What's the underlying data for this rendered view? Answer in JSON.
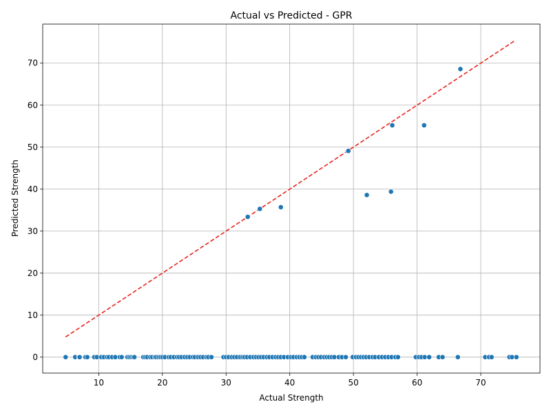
{
  "chart_data": {
    "type": "scatter",
    "title": "Actual vs Predicted - GPR",
    "xlabel": "Actual Strength",
    "ylabel": "Predicted Strength",
    "xlim": [
      1.2,
      79.3
    ],
    "ylim": [
      -3.8,
      79.3
    ],
    "xticks": [
      10,
      20,
      30,
      40,
      50,
      60,
      70
    ],
    "yticks": [
      0,
      10,
      20,
      30,
      40,
      50,
      60,
      70
    ],
    "grid": true,
    "point_color": "#1f77b4",
    "reference_line": {
      "x": [
        4.8,
        75.5
      ],
      "y": [
        4.8,
        75.5
      ],
      "color": "#e8221c",
      "style": "dashed"
    },
    "points": [
      [
        33.4,
        33.4
      ],
      [
        35.3,
        35.3
      ],
      [
        38.6,
        35.7
      ],
      [
        49.2,
        49.1
      ],
      [
        52.1,
        38.6
      ],
      [
        55.9,
        39.4
      ],
      [
        56.1,
        55.2
      ],
      [
        61.1,
        55.2
      ],
      [
        66.8,
        68.6
      ],
      [
        4.8,
        0
      ],
      [
        6.3,
        0
      ],
      [
        6.9,
        0
      ],
      [
        7.0,
        0
      ],
      [
        7.9,
        0
      ],
      [
        8.2,
        0
      ],
      [
        9.3,
        0
      ],
      [
        9.7,
        0
      ],
      [
        10.4,
        0
      ],
      [
        10.8,
        0
      ],
      [
        11.3,
        0
      ],
      [
        11.6,
        0
      ],
      [
        12.1,
        0
      ],
      [
        12.6,
        0
      ],
      [
        13.3,
        0
      ],
      [
        13.6,
        0
      ],
      [
        14.5,
        0
      ],
      [
        14.8,
        0
      ],
      [
        15.1,
        0
      ],
      [
        15.4,
        0
      ],
      [
        15.6,
        0
      ],
      [
        17.0,
        0
      ],
      [
        17.3,
        0
      ],
      [
        17.6,
        0
      ],
      [
        18.1,
        0
      ],
      [
        18.4,
        0
      ],
      [
        18.8,
        0
      ],
      [
        19.0,
        0
      ],
      [
        19.4,
        0
      ],
      [
        19.7,
        0
      ],
      [
        20.0,
        0
      ],
      [
        20.4,
        0
      ],
      [
        21.0,
        0
      ],
      [
        21.3,
        0
      ],
      [
        21.8,
        0
      ],
      [
        22.3,
        0
      ],
      [
        22.6,
        0
      ],
      [
        23.0,
        0
      ],
      [
        23.5,
        0
      ],
      [
        23.9,
        0
      ],
      [
        24.3,
        0
      ],
      [
        24.8,
        0
      ],
      [
        25.1,
        0
      ],
      [
        25.6,
        0
      ],
      [
        26.0,
        0
      ],
      [
        26.4,
        0
      ],
      [
        26.9,
        0
      ],
      [
        27.2,
        0
      ],
      [
        27.7,
        0
      ],
      [
        29.6,
        0
      ],
      [
        30.0,
        0
      ],
      [
        30.4,
        0
      ],
      [
        30.9,
        0
      ],
      [
        31.3,
        0
      ],
      [
        31.7,
        0
      ],
      [
        32.2,
        0
      ],
      [
        32.6,
        0
      ],
      [
        32.9,
        0
      ],
      [
        33.3,
        0
      ],
      [
        33.8,
        0
      ],
      [
        34.3,
        0
      ],
      [
        34.7,
        0
      ],
      [
        35.1,
        0
      ],
      [
        35.5,
        0
      ],
      [
        35.9,
        0
      ],
      [
        36.4,
        0
      ],
      [
        36.8,
        0
      ],
      [
        37.3,
        0
      ],
      [
        37.8,
        0
      ],
      [
        38.2,
        0
      ],
      [
        38.6,
        0
      ],
      [
        39.1,
        0
      ],
      [
        39.7,
        0
      ],
      [
        40.2,
        0
      ],
      [
        40.6,
        0
      ],
      [
        41.1,
        0
      ],
      [
        41.5,
        0
      ],
      [
        41.9,
        0
      ],
      [
        42.3,
        0
      ],
      [
        43.6,
        0
      ],
      [
        44.1,
        0
      ],
      [
        44.5,
        0
      ],
      [
        44.9,
        0
      ],
      [
        45.4,
        0
      ],
      [
        45.8,
        0
      ],
      [
        46.2,
        0
      ],
      [
        46.6,
        0
      ],
      [
        47.0,
        0
      ],
      [
        47.7,
        0
      ],
      [
        48.2,
        0
      ],
      [
        48.8,
        0
      ],
      [
        49.9,
        0
      ],
      [
        50.4,
        0
      ],
      [
        50.8,
        0
      ],
      [
        51.2,
        0
      ],
      [
        51.6,
        0
      ],
      [
        52.0,
        0
      ],
      [
        52.5,
        0
      ],
      [
        53.0,
        0
      ],
      [
        53.4,
        0
      ],
      [
        54.0,
        0
      ],
      [
        54.5,
        0
      ],
      [
        55.0,
        0
      ],
      [
        55.5,
        0
      ],
      [
        56.0,
        0
      ],
      [
        56.6,
        0
      ],
      [
        57.0,
        0
      ],
      [
        59.8,
        0
      ],
      [
        60.3,
        0
      ],
      [
        60.7,
        0
      ],
      [
        61.2,
        0
      ],
      [
        61.9,
        0
      ],
      [
        63.4,
        0
      ],
      [
        64.0,
        0
      ],
      [
        66.4,
        0
      ],
      [
        70.7,
        0
      ],
      [
        71.3,
        0
      ],
      [
        71.7,
        0
      ],
      [
        74.5,
        0
      ],
      [
        74.9,
        0
      ],
      [
        75.6,
        0
      ]
    ]
  }
}
